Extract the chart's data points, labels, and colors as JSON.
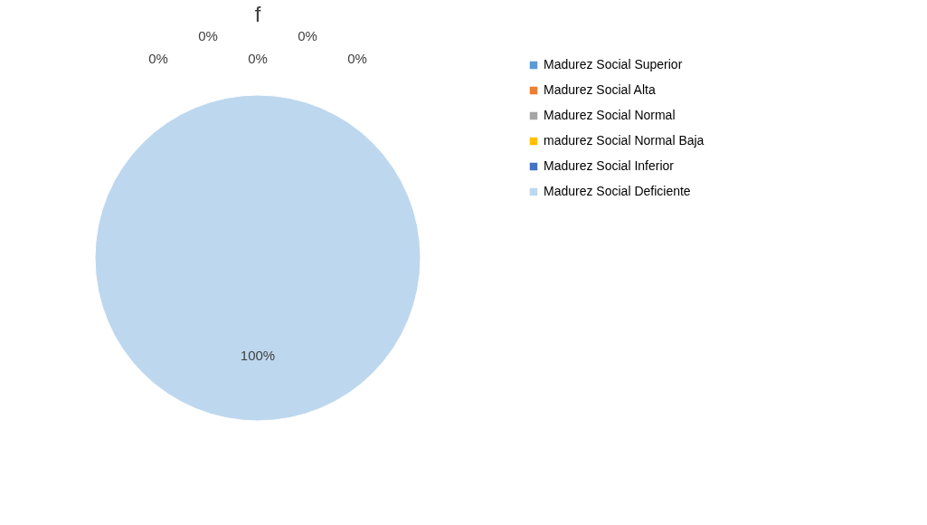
{
  "chart_data": {
    "type": "pie",
    "title": "f",
    "categories": [
      "Madurez Social Superior",
      "Madurez Social Alta",
      "Madurez Social Normal",
      " madurez Social Normal Baja",
      "Madurez Social Inferior",
      "Madurez Social Deficiente"
    ],
    "values": [
      0,
      0,
      0,
      0,
      0,
      100
    ],
    "colors": [
      "#5b9bd5",
      "#ed7d31",
      "#a5a5a5",
      "#ffc000",
      "#4472c4",
      "#bdd7ee"
    ],
    "value_labels": [
      "0%",
      "0%",
      "0%",
      "0%",
      "0%",
      "100%"
    ],
    "legend": "right"
  }
}
